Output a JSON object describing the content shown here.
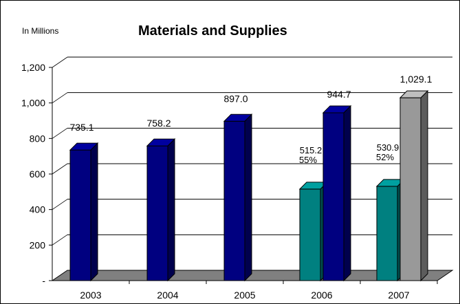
{
  "chart_data": {
    "type": "bar",
    "title": "Materials and Supplies",
    "unit_label": "In Millions",
    "xlabel": "",
    "ylabel": "",
    "ylim": [
      0,
      1200
    ],
    "y_ticks": [
      "-",
      "200",
      "400",
      "600",
      "800",
      "1,000",
      "1,200"
    ],
    "y_tick_values": [
      0,
      200,
      400,
      600,
      800,
      1000,
      1200
    ],
    "grid": true,
    "categories": [
      "2003",
      "2004",
      "2005",
      "2006",
      "2007"
    ],
    "series": [
      {
        "values": [
          null,
          null,
          null,
          515.2,
          530.9
        ],
        "labels": [
          "",
          "",
          "",
          "515.2",
          "530.9"
        ],
        "pct_labels": [
          "",
          "",
          "",
          "55%",
          "52%"
        ],
        "color": "#008080"
      },
      {
        "values": [
          735.1,
          758.2,
          897.0,
          944.7,
          1029.1
        ],
        "labels": [
          "735.1",
          "758.2",
          "897.0",
          "944.7",
          "1,029.1"
        ],
        "colors": [
          "#000080",
          "#000080",
          "#000080",
          "#000080",
          "#999999"
        ]
      }
    ],
    "colors": {
      "floor": "#808080",
      "navy": "#000080",
      "teal": "#008080",
      "gray": "#999999"
    }
  }
}
